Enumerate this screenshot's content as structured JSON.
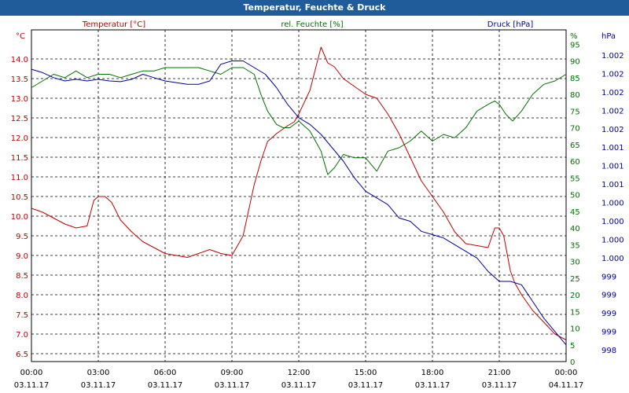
{
  "window_title": "Temperatur, Feuchte & Druck",
  "chart_data": {
    "type": "line",
    "title": "Temperatur, Feuchte & Druck",
    "grid": true,
    "colors": {
      "temperature": "#c00000",
      "humidity": "#007000",
      "pressure": "#00009a"
    },
    "axes": {
      "left": {
        "label": "Temperatur [°C]",
        "unit": "°C",
        "range": [
          6.5,
          14.5
        ],
        "ticks": [
          "6.5",
          "7.0",
          "7.5",
          "8.0",
          "8.5",
          "9.0",
          "9.5",
          "10.0",
          "10.5",
          "11.0",
          "11.5",
          "12.0",
          "12.5",
          "13.0",
          "13.5",
          "14.0"
        ]
      },
      "right1": {
        "label": "rel. Feuchte [%]",
        "unit": "%",
        "range": [
          0,
          97
        ],
        "ticks": [
          "0",
          "5",
          "10",
          "15",
          "20",
          "25",
          "30",
          "35",
          "40",
          "45",
          "50",
          "55",
          "60",
          "65",
          "70",
          "75",
          "80",
          "85",
          "90",
          "95"
        ]
      },
      "right2": {
        "label": "Druck [hPa]",
        "unit": "hPa",
        "ticks": [
          "1.002",
          "1.002",
          "1.002",
          "1.002",
          "1.002",
          "1.001",
          "1.001",
          "1.001",
          "1.000",
          "1.000",
          "1.000",
          "1.000",
          "999",
          "999",
          "999",
          "999",
          "998"
        ]
      }
    },
    "x_ticks": [
      {
        "time": "00:00",
        "date": "03.11.17"
      },
      {
        "time": "03:00",
        "date": "03.11.17"
      },
      {
        "time": "06:00",
        "date": "03.11.17"
      },
      {
        "time": "09:00",
        "date": "03.11.17"
      },
      {
        "time": "12:00",
        "date": "03.11.17"
      },
      {
        "time": "15:00",
        "date": "03.11.17"
      },
      {
        "time": "18:00",
        "date": "03.11.17"
      },
      {
        "time": "21:00",
        "date": "03.11.17"
      },
      {
        "time": "00:00",
        "date": "04.11.17"
      }
    ],
    "x_range_hours": [
      0,
      24
    ],
    "series": [
      {
        "name": "Temperatur [°C]",
        "axis": "left",
        "color_key": "temperature",
        "x": [
          0,
          0.5,
          1,
          1.5,
          2,
          2.5,
          2.8,
          3,
          3.3,
          3.6,
          4,
          4.5,
          5,
          5.5,
          6,
          6.5,
          7,
          7.5,
          8,
          8.5,
          9,
          9.5,
          10,
          10.3,
          10.6,
          11,
          11.5,
          11.8,
          12,
          12.5,
          13,
          13.3,
          13.6,
          14,
          14.5,
          15,
          15.5,
          16,
          16.5,
          17,
          17.5,
          18,
          18.5,
          19,
          19.5,
          20,
          20.5,
          20.8,
          21,
          21.2,
          21.5,
          21.7,
          22,
          22.5,
          23,
          23.5,
          24
        ],
        "values": [
          10.2,
          10.1,
          9.95,
          9.8,
          9.7,
          9.75,
          10.4,
          10.5,
          10.5,
          10.35,
          9.9,
          9.6,
          9.35,
          9.2,
          9.05,
          9.0,
          8.95,
          9.05,
          9.15,
          9.05,
          9.0,
          9.5,
          10.8,
          11.4,
          11.9,
          12.1,
          12.3,
          12.4,
          12.6,
          13.2,
          14.3,
          13.9,
          13.8,
          13.5,
          13.3,
          13.1,
          13.0,
          12.6,
          12.1,
          11.5,
          10.9,
          10.5,
          10.1,
          9.6,
          9.3,
          9.25,
          9.2,
          9.7,
          9.7,
          9.5,
          8.6,
          8.3,
          8.0,
          7.6,
          7.3,
          7.0,
          6.85
        ]
      },
      {
        "name": "rel. Feuchte [%]",
        "axis": "right1",
        "color_key": "humidity",
        "x": [
          0,
          0.5,
          1,
          1.5,
          2,
          2.5,
          3,
          3.5,
          4,
          4.5,
          5,
          5.5,
          6,
          6.5,
          7,
          7.5,
          8,
          8.5,
          9,
          9.5,
          10,
          10.3,
          10.6,
          11,
          11.3,
          11.6,
          12,
          12.5,
          13,
          13.3,
          13.6,
          14,
          14.5,
          15,
          15.5,
          16,
          16.5,
          17,
          17.5,
          18,
          18.5,
          19,
          19.5,
          20,
          20.5,
          20.8,
          21,
          21.3,
          21.6,
          22,
          22.5,
          23,
          23.5,
          24
        ],
        "values": [
          82,
          84,
          86,
          85,
          87,
          85,
          86,
          86,
          85,
          86,
          87,
          87,
          88,
          88,
          88,
          88,
          87,
          86,
          88,
          88,
          86,
          80,
          75,
          71,
          70,
          70,
          72,
          69,
          63,
          56,
          58,
          62,
          61,
          61,
          57,
          63,
          64,
          66,
          69,
          66,
          68,
          67,
          70,
          75,
          77,
          78,
          77,
          74,
          72,
          75,
          80,
          83,
          84,
          86
        ]
      },
      {
        "name": "Druck [hPa]",
        "axis": "right2",
        "color_key": "pressure",
        "x": [
          0,
          0.5,
          1,
          1.5,
          2,
          2.5,
          3,
          3.5,
          4,
          4.5,
          5,
          5.5,
          6,
          6.5,
          7,
          7.5,
          8,
          8.5,
          9,
          9.5,
          10,
          10.5,
          11,
          11.5,
          12,
          12.5,
          13,
          13.5,
          14,
          14.5,
          15,
          15.5,
          16,
          16.5,
          17,
          17.5,
          18,
          18.5,
          19,
          19.5,
          20,
          20.5,
          21,
          21.5,
          22,
          22.5,
          23,
          23.5,
          24
        ],
        "values": [
          87.5,
          86.5,
          85,
          84,
          84.5,
          84,
          84.5,
          84,
          83.8,
          84.5,
          86,
          85,
          84,
          83.5,
          83,
          83,
          84,
          89,
          90,
          90,
          88,
          86,
          82,
          77,
          73,
          71,
          68,
          64,
          60,
          55,
          51,
          49,
          47,
          43,
          42,
          39,
          38,
          37,
          35,
          33,
          31,
          27,
          24,
          24,
          23,
          18,
          13,
          9,
          5
        ]
      }
    ]
  }
}
